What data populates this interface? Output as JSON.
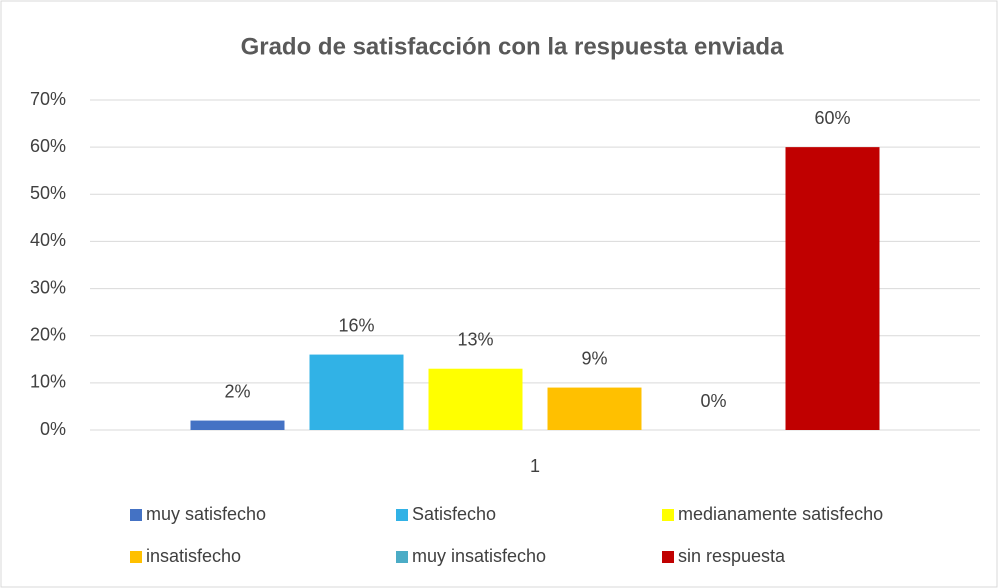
{
  "chart_data": {
    "type": "bar",
    "title": "Grado de satisfacción con la respuesta enviada",
    "categories": [
      "1"
    ],
    "series": [
      {
        "name": "muy satisfecho",
        "color": "#4472c4",
        "values": [
          2
        ],
        "value_labels": [
          "2%"
        ]
      },
      {
        "name": "Satisfecho",
        "color": "#31b2e6",
        "values": [
          16
        ],
        "value_labels": [
          "16%"
        ]
      },
      {
        "name": "medianamente satisfecho",
        "color": "#ffff00",
        "values": [
          13
        ],
        "value_labels": [
          "13%"
        ]
      },
      {
        "name": "insatisfecho",
        "color": "#ffc000",
        "values": [
          9
        ],
        "value_labels": [
          "9%"
        ]
      },
      {
        "name": "muy insatisfecho",
        "color": "#4bacc6",
        "values": [
          0
        ],
        "value_labels": [
          "0%"
        ]
      },
      {
        "name": "sin respuesta",
        "color": "#c00000",
        "values": [
          60
        ],
        "value_labels": [
          "60%"
        ]
      }
    ],
    "ylim": [
      0,
      70
    ],
    "yticks": [
      {
        "value": 0,
        "label": "0%"
      },
      {
        "value": 10,
        "label": "10%"
      },
      {
        "value": 20,
        "label": "20%"
      },
      {
        "value": 30,
        "label": "30%"
      },
      {
        "value": 40,
        "label": "40%"
      },
      {
        "value": 50,
        "label": "50%"
      },
      {
        "value": 60,
        "label": "60%"
      },
      {
        "value": 70,
        "label": "70%"
      }
    ],
    "grid": true,
    "legend": "bottom"
  }
}
